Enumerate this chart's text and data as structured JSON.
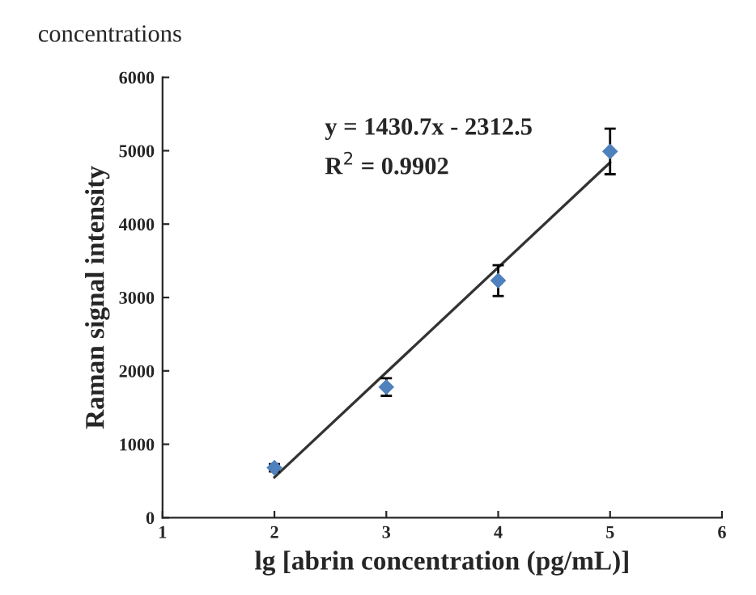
{
  "chart_data": {
    "type": "scatter",
    "title": "concentrations",
    "xlabel": "lg [abrin concentration (pg/mL)]",
    "ylabel": "Raman signal intensity",
    "x": [
      2,
      3,
      4,
      5
    ],
    "series": [
      {
        "color": "#4f81bd",
        "marker": "diamond",
        "values": [
          680,
          1780,
          3230,
          4990
        ],
        "errors": [
          50,
          120,
          210,
          310
        ]
      },
      {
        "type": "line",
        "color": "#333333",
        "x": [
          2,
          5
        ],
        "values": [
          550,
          4840
        ]
      }
    ],
    "annotations": [
      "y = 1430.7x - 2312.5",
      "R$^{2}$ = 0.9902"
    ],
    "xlim": [
      1,
      6
    ],
    "xticks": [
      1,
      2,
      3,
      4,
      5,
      6
    ],
    "ylim": [
      0,
      6000
    ],
    "yticks": [
      0,
      1000,
      2000,
      3000,
      4000,
      5000,
      6000
    ],
    "grid": false,
    "legend": false
  }
}
